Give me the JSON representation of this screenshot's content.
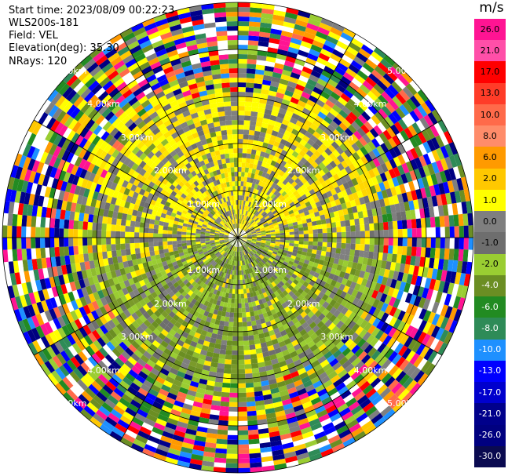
{
  "header": {
    "start_time": "Start time: 2023/08/09 00:22:23",
    "instrument": "WLS200s-181",
    "field": "Field: VEL",
    "elevation": "Elevation(deg): 35.30",
    "nrays": "NRays: 120"
  },
  "colorbar": {
    "unit": "m/s",
    "labels": [
      "26.0",
      "21.0",
      "17.0",
      "13.0",
      "10.0",
      "8.0",
      "6.0",
      "2.0",
      "1.0",
      "0.0",
      "-1.0",
      "-2.0",
      "-4.0",
      "-6.0",
      "-8.0",
      "-10.0",
      "-13.0",
      "-17.0",
      "-21.0",
      "-26.0",
      "-30.0"
    ],
    "colors": [
      "#ff1493",
      "#ff4fa8",
      "#ff0000",
      "#ff3c28",
      "#ff6a4a",
      "#ff8c6a",
      "#ff9a00",
      "#ffc800",
      "#ffff00",
      "#7f7f7f",
      "#6e6e6e",
      "#9acd32",
      "#6b8e23",
      "#228b22",
      "#2e8b57",
      "#1e90ff",
      "#0000ff",
      "#0000cd",
      "#00008b",
      "#000080",
      "#0a0a50"
    ]
  },
  "range_rings": {
    "labels": [
      "1.00km",
      "2.00km",
      "3.00km",
      "4.00km",
      "5.00km"
    ]
  }
}
